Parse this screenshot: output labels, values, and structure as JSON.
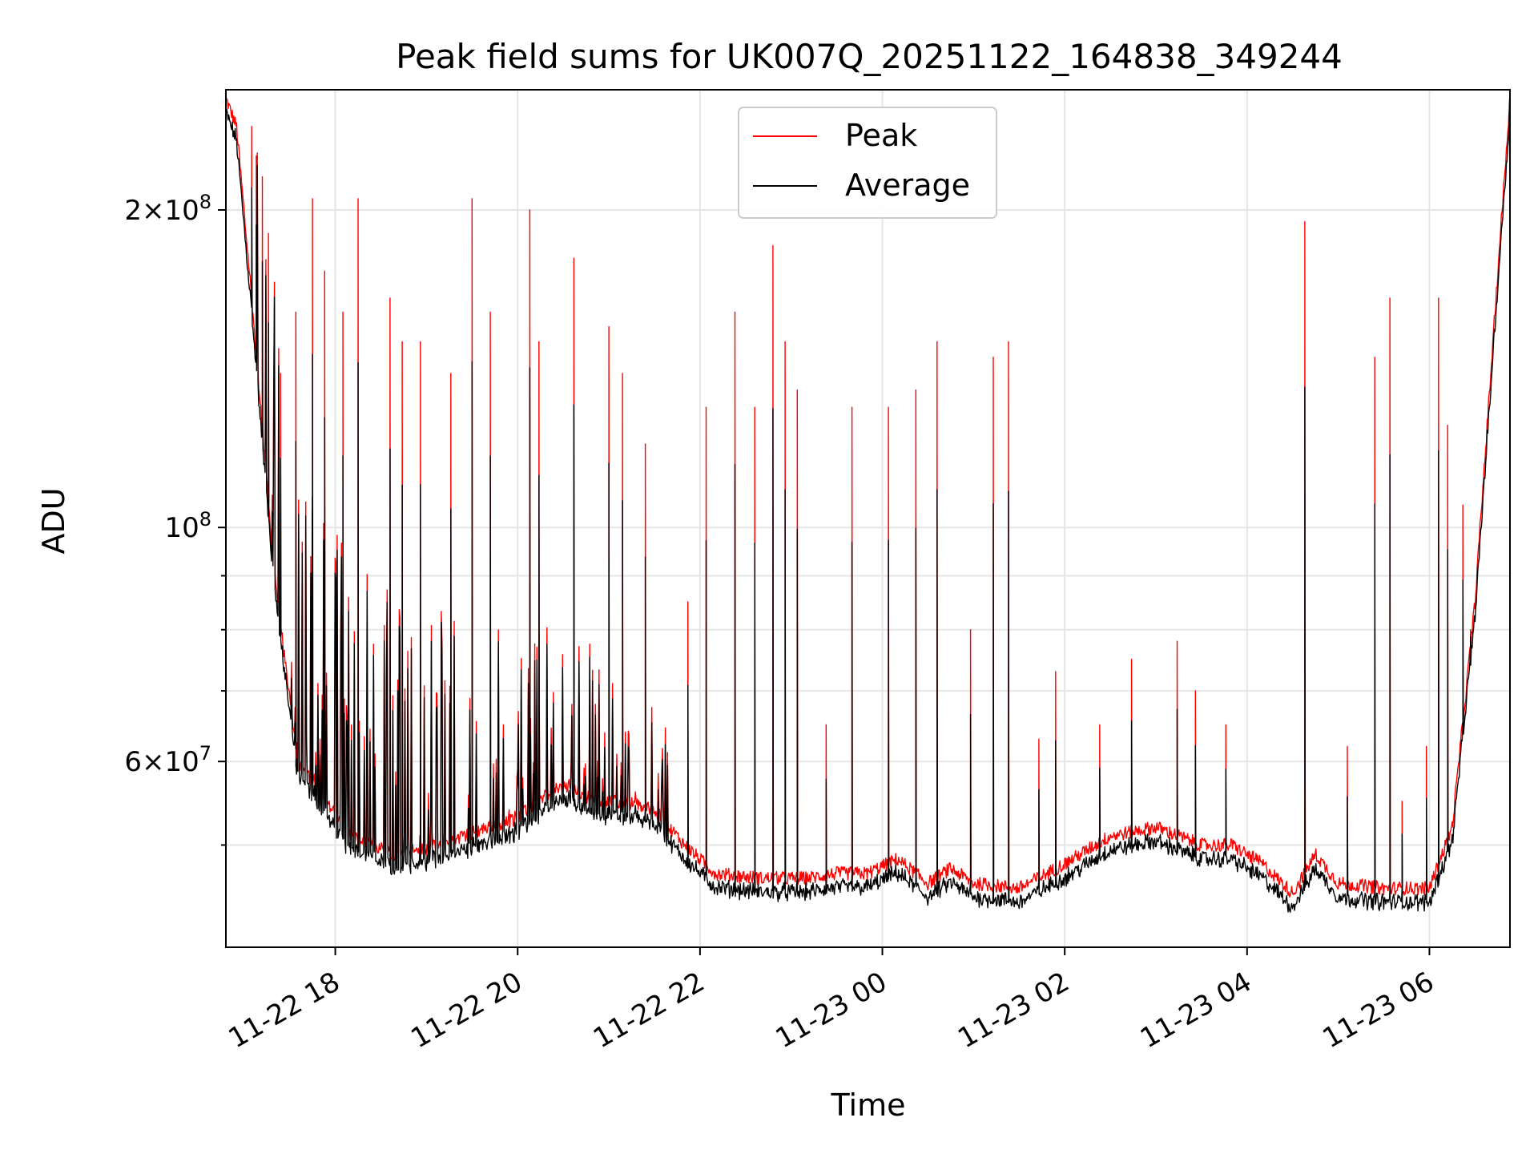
{
  "chart_data": {
    "type": "line",
    "title": "Peak field sums for UK007Q_20251122_164838_349244",
    "xlabel": "Time",
    "ylabel": "ADU",
    "yscale": "log",
    "ylim": [
      40000000,
      260000000
    ],
    "xlim": [
      "2025-11-22 16:48",
      "2025-11-23 06:53"
    ],
    "x_ticks": [
      "11-22 18",
      "11-22 20",
      "11-22 22",
      "11-23 00",
      "11-23 02",
      "11-23 04",
      "11-23 06"
    ],
    "x_tick_values": [
      "2025-11-22 18:00",
      "2025-11-22 20:00",
      "2025-11-22 22:00",
      "2025-11-23 00:00",
      "2025-11-23 02:00",
      "2025-11-23 04:00",
      "2025-11-23 06:00"
    ],
    "y_tick_labels": [
      {
        "value": 200000000,
        "mantissa": "2",
        "exponent": "8"
      },
      {
        "value": 100000000,
        "mantissa": "",
        "exponent": "8"
      },
      {
        "value": 60000000,
        "mantissa": "6",
        "exponent": "7"
      }
    ],
    "y_minor_ticks": [
      50000000,
      70000000,
      80000000,
      90000000
    ],
    "grid": true,
    "legend_position": "top-center",
    "series": [
      {
        "name": "Peak",
        "color": "#ff0000",
        "baseline": {
          "x": [
            "2025-11-22 16:48",
            "2025-11-22 16:55",
            "2025-11-22 17:05",
            "2025-11-22 17:20",
            "2025-11-22 17:35",
            "2025-11-22 17:50",
            "2025-11-22 18:10",
            "2025-11-22 18:40",
            "2025-11-22 19:10",
            "2025-11-22 19:40",
            "2025-11-22 20:00",
            "2025-11-22 20:20",
            "2025-11-22 20:35",
            "2025-11-22 20:50",
            "2025-11-22 21:10",
            "2025-11-22 21:30",
            "2025-11-22 21:50",
            "2025-11-22 22:10",
            "2025-11-22 22:40",
            "2025-11-22 23:10",
            "2025-11-22 23:30",
            "2025-11-22 23:50",
            "2025-11-23 00:10",
            "2025-11-23 00:30",
            "2025-11-23 00:45",
            "2025-11-23 01:00",
            "2025-11-23 01:30",
            "2025-11-23 02:00",
            "2025-11-23 02:30",
            "2025-11-23 03:00",
            "2025-11-23 03:30",
            "2025-11-23 03:50",
            "2025-11-23 04:10",
            "2025-11-23 04:30",
            "2025-11-23 04:45",
            "2025-11-23 05:00",
            "2025-11-23 05:30",
            "2025-11-23 06:00",
            "2025-11-23 06:15",
            "2025-11-23 06:30",
            "2025-11-23 06:45",
            "2025-11-23 06:53"
          ],
          "y": [
            255000000,
            240000000,
            165000000,
            90000000,
            60000000,
            56000000,
            51000000,
            49000000,
            50000000,
            52000000,
            53000000,
            56000000,
            57000000,
            55000000,
            55000000,
            54000000,
            50000000,
            47000000,
            46500000,
            46500000,
            47000000,
            47000000,
            48500000,
            46000000,
            47500000,
            46000000,
            45500000,
            48000000,
            51000000,
            52000000,
            50000000,
            50000000,
            48000000,
            45000000,
            49000000,
            46000000,
            45500000,
            45500000,
            52000000,
            85000000,
            175000000,
            255000000
          ]
        },
        "spikes": {
          "x": [
            "2025-11-22 17:05",
            "2025-11-22 17:08",
            "2025-11-22 17:12",
            "2025-11-22 17:16",
            "2025-11-22 17:24",
            "2025-11-22 17:34",
            "2025-11-22 17:45",
            "2025-11-22 17:53",
            "2025-11-22 18:05",
            "2025-11-22 18:15",
            "2025-11-22 18:36",
            "2025-11-22 18:44",
            "2025-11-22 18:56",
            "2025-11-22 19:16",
            "2025-11-22 19:30",
            "2025-11-22 19:42",
            "2025-11-22 20:08",
            "2025-11-22 20:14",
            "2025-11-22 20:37",
            "2025-11-22 21:00",
            "2025-11-22 21:09",
            "2025-11-22 21:24",
            "2025-11-22 21:52",
            "2025-11-22 22:04",
            "2025-11-22 22:23",
            "2025-11-22 22:36",
            "2025-11-22 22:48",
            "2025-11-22 22:56",
            "2025-11-22 23:04",
            "2025-11-22 23:23",
            "2025-11-22 23:40",
            "2025-11-23 00:04",
            "2025-11-23 00:22",
            "2025-11-23 00:36",
            "2025-11-23 00:58",
            "2025-11-23 01:13",
            "2025-11-23 01:23",
            "2025-11-23 01:43",
            "2025-11-23 01:54",
            "2025-11-23 02:23",
            "2025-11-23 02:44",
            "2025-11-23 03:14",
            "2025-11-23 03:26",
            "2025-11-23 03:46",
            "2025-11-23 04:38",
            "2025-11-23 05:06",
            "2025-11-23 05:24",
            "2025-11-23 05:34",
            "2025-11-23 05:42",
            "2025-11-23 05:58",
            "2025-11-23 06:06",
            "2025-11-23 06:12",
            "2025-11-23 06:22",
            "2025-11-23 06:27"
          ],
          "y": [
            240000000,
            225000000,
            215000000,
            190000000,
            140000000,
            160000000,
            205000000,
            175000000,
            160000000,
            205000000,
            165000000,
            150000000,
            150000000,
            140000000,
            205000000,
            160000000,
            200000000,
            150000000,
            180000000,
            155000000,
            140000000,
            120000000,
            85000000,
            130000000,
            160000000,
            130000000,
            185000000,
            150000000,
            135000000,
            65000000,
            130000000,
            130000000,
            135000000,
            150000000,
            80000000,
            145000000,
            150000000,
            63000000,
            73000000,
            65000000,
            75000000,
            78000000,
            70000000,
            65000000,
            195000000,
            62000000,
            145000000,
            165000000,
            55000000,
            62000000,
            165000000,
            125000000,
            105000000,
            80000000
          ]
        }
      },
      {
        "name": "Average",
        "color": "#000000",
        "baseline_scale": 0.97,
        "spike_scale": 0.6
      }
    ]
  }
}
